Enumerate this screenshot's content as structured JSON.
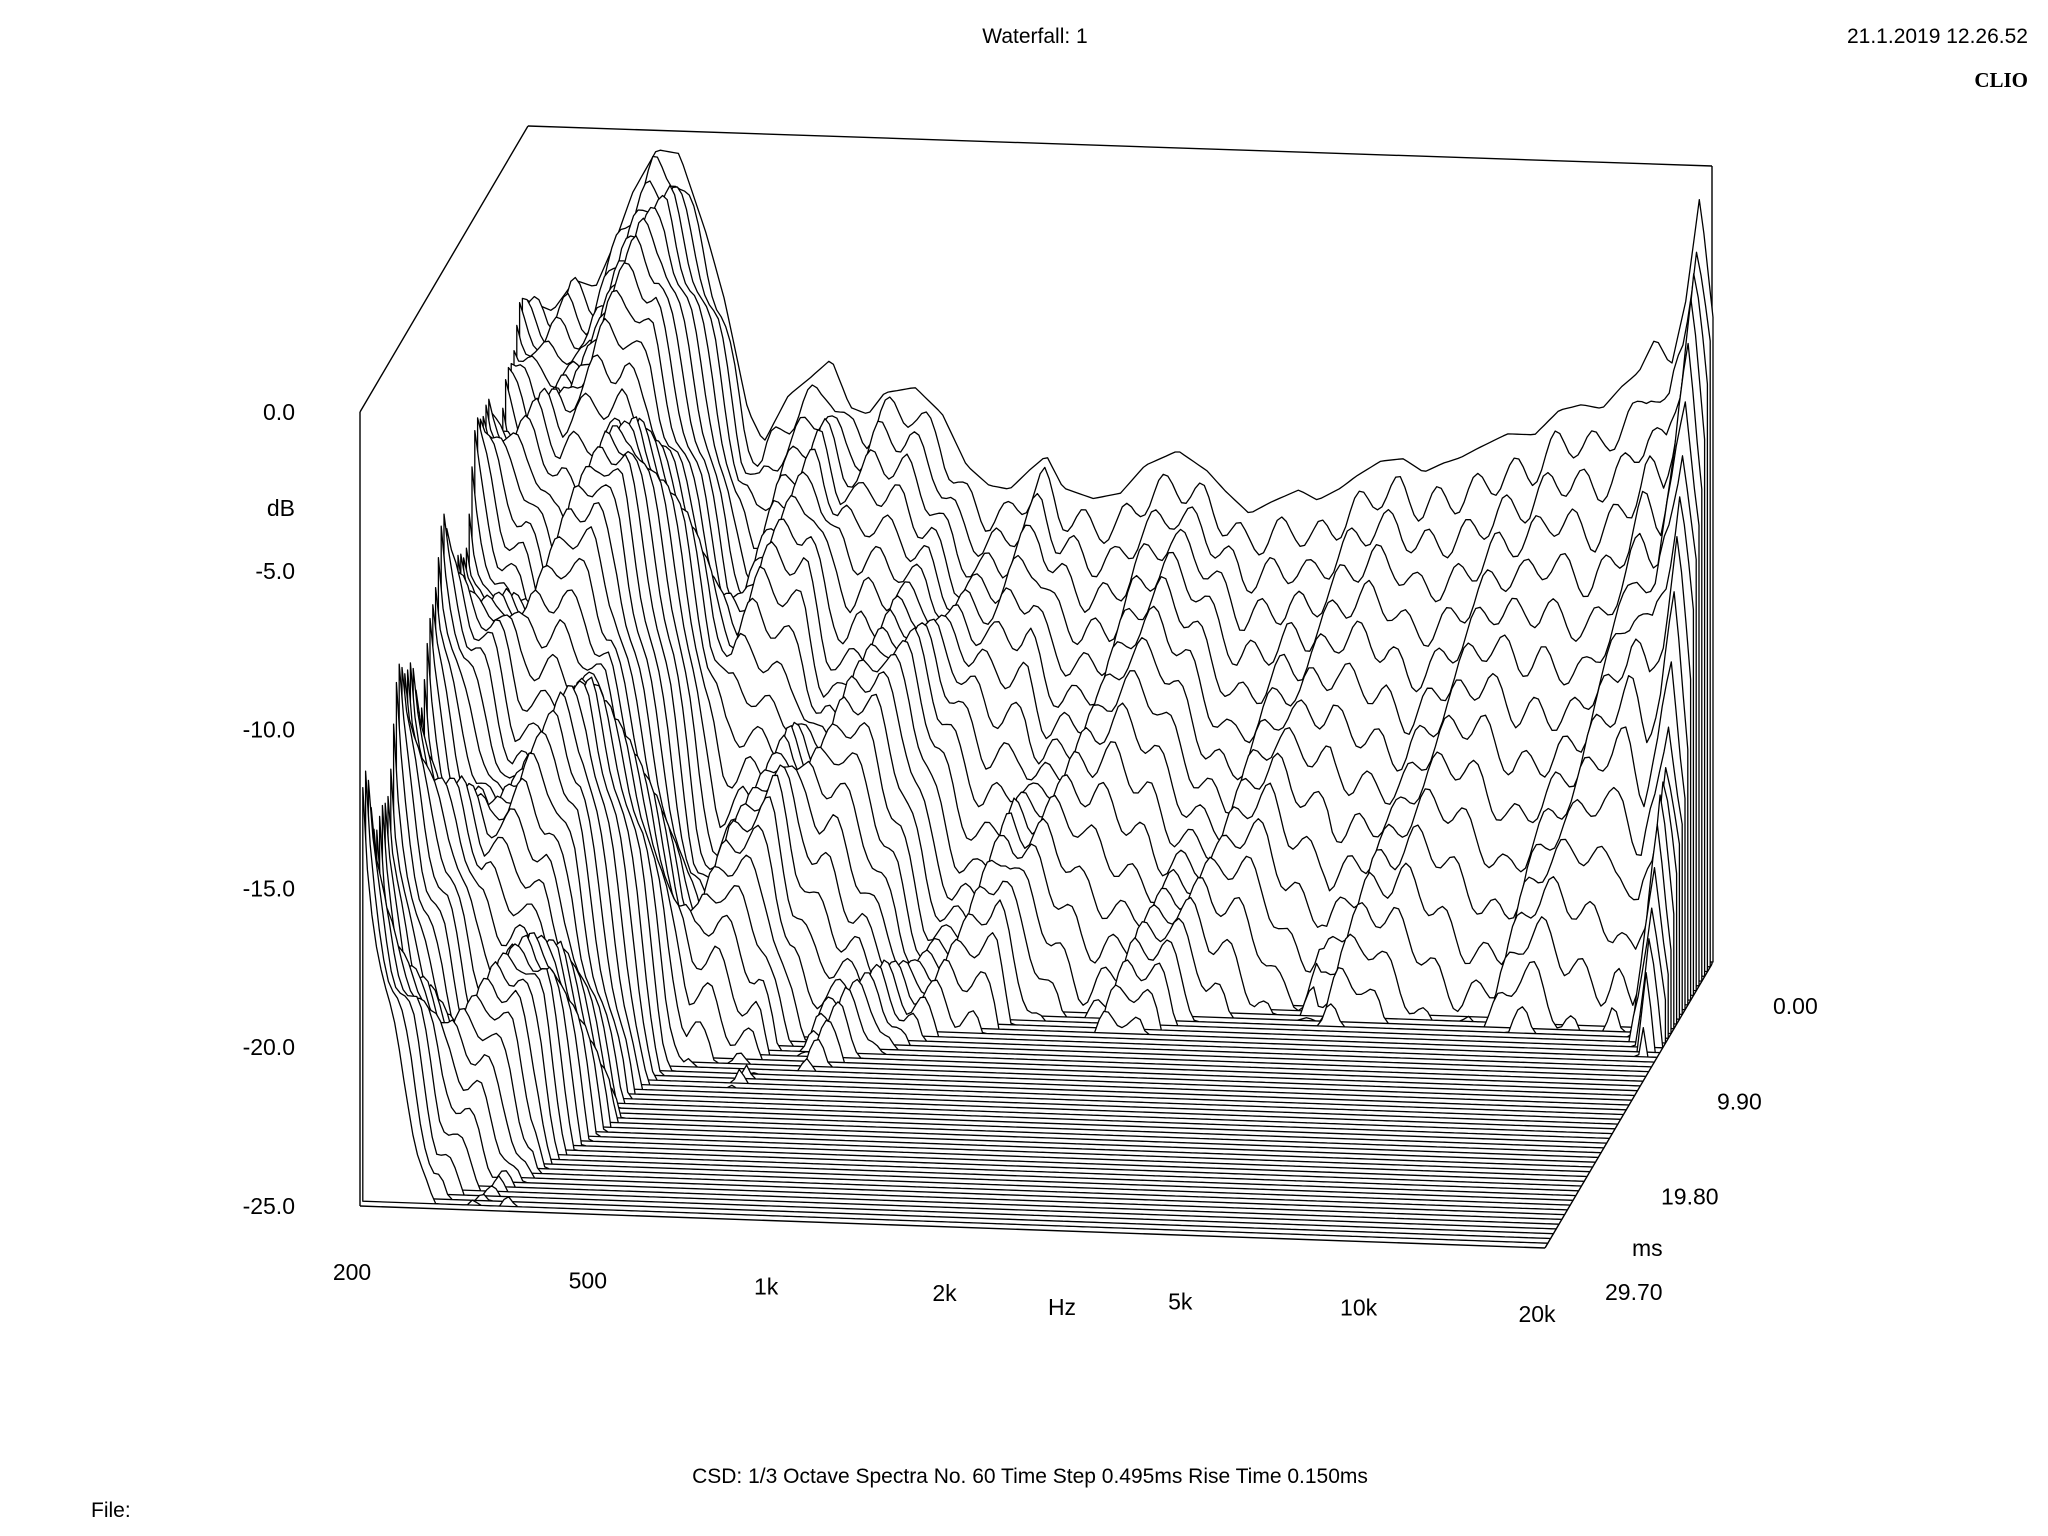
{
  "header": {
    "title": "Waterfall: 1",
    "timestamp": "21.1.2019 12.26.52",
    "brand": "CLIO"
  },
  "footer": {
    "settings": "CSD:   1/3 Octave   Spectra No. 60   Time Step 0.495ms   Rise Time 0.150ms",
    "file_label": "File:"
  },
  "chart_data": {
    "type": "waterfall",
    "title": "Waterfall: 1",
    "x_axis": {
      "label": "Hz",
      "scale": "log",
      "range": [
        200,
        20000
      ],
      "ticks": [
        "200",
        "500",
        "1k",
        "2k",
        "5k",
        "10k",
        "20k"
      ],
      "tick_values": [
        200,
        500,
        1000,
        2000,
        5000,
        10000,
        20000
      ]
    },
    "y_axis": {
      "label": "dB",
      "range": [
        -25.0,
        0.0
      ],
      "ticks": [
        "0.0",
        "-5.0",
        "-10.0",
        "-15.0",
        "-20.0",
        "-25.0"
      ],
      "tick_values": [
        0.0,
        -5.0,
        -10.0,
        -15.0,
        -20.0,
        -25.0
      ]
    },
    "z_axis": {
      "label": "ms",
      "range": [
        0.0,
        29.7
      ],
      "ticks": [
        "0.00",
        "9.90",
        "19.80",
        "29.70"
      ],
      "tick_values": [
        0.0,
        9.9,
        19.8,
        29.7
      ]
    },
    "spectra_count": 60,
    "time_step_ms": 0.495,
    "rise_time_ms": 0.15,
    "smoothing": "1/3 Octave",
    "first_spectrum": {
      "freq_hz": [
        200,
        220,
        240,
        260,
        280,
        300,
        330,
        360,
        400,
        430,
        470,
        500,
        550,
        600,
        650,
        700,
        750,
        800,
        900,
        1000,
        1100,
        1200,
        1300,
        1400,
        1500,
        1600,
        1800,
        2000,
        2200,
        2500,
        2800,
        3000,
        3300,
        3600,
        4000,
        4300,
        4700,
        5000,
        5500,
        6000,
        6500,
        7000,
        7500,
        8000,
        9000,
        10000,
        11000,
        12000,
        13000,
        14000,
        15000,
        16000,
        17000,
        18000,
        19000,
        20000
      ],
      "level_db": [
        -5.5,
        -5.8,
        -4.8,
        -5.0,
        -3.6,
        -2.0,
        -0.6,
        -0.7,
        -3.2,
        -5.3,
        -8.7,
        -9.7,
        -8.2,
        -7.6,
        -7.0,
        -8.5,
        -8.7,
        -8.0,
        -7.8,
        -8.6,
        -10.2,
        -10.8,
        -10.9,
        -10.3,
        -9.8,
        -10.8,
        -11.1,
        -10.9,
        -10.0,
        -9.5,
        -10.1,
        -10.7,
        -11.4,
        -11.0,
        -10.6,
        -10.9,
        -10.5,
        -10.1,
        -9.6,
        -9.5,
        -9.9,
        -9.6,
        -9.4,
        -9.1,
        -8.6,
        -8.6,
        -7.8,
        -7.6,
        -7.7,
        -7.0,
        -6.5,
        -5.4,
        -6.3,
        -4.2,
        -0.9,
        -4.7
      ]
    },
    "grid": true,
    "legend": "none"
  }
}
